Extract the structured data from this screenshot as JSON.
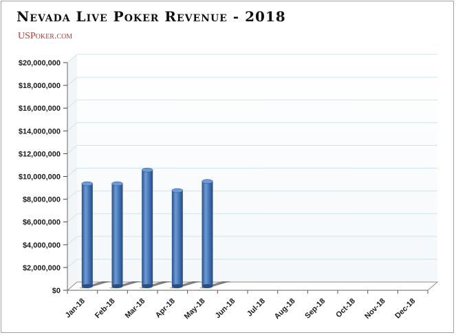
{
  "chart_data": {
    "type": "bar",
    "title": "Nevada Live Poker Revenue - 2018",
    "subtitle": "USPoker.com",
    "categories": [
      "Jan-18",
      "Feb-18",
      "Mar-18",
      "Apr-18",
      "May-18",
      "Jun-18",
      "Jul-18",
      "Aug-18",
      "Sep-18",
      "Oct-18",
      "Nov-18",
      "Dec-18"
    ],
    "values": [
      9000000,
      9000000,
      10200000,
      8400000,
      9200000,
      null,
      null,
      null,
      null,
      null,
      null,
      null
    ],
    "ylim": [
      0,
      20000000
    ],
    "yticks": [
      "$0",
      "$2,000,000",
      "$4,000,000",
      "$6,000,000",
      "$8,000,000",
      "$10,000,000",
      "$12,000,000",
      "$14,000,000",
      "$16,000,000",
      "$18,000,000",
      "$20,000,000"
    ],
    "grid": true,
    "legend": "none",
    "xlabel": "",
    "ylabel": "",
    "colors": {
      "bar": "#3d6fb0",
      "bar_dark": "#2a4f86",
      "bar_light": "#6e9bd6",
      "grid": "#cfe3ea",
      "floor": "#c9c9c9"
    }
  }
}
